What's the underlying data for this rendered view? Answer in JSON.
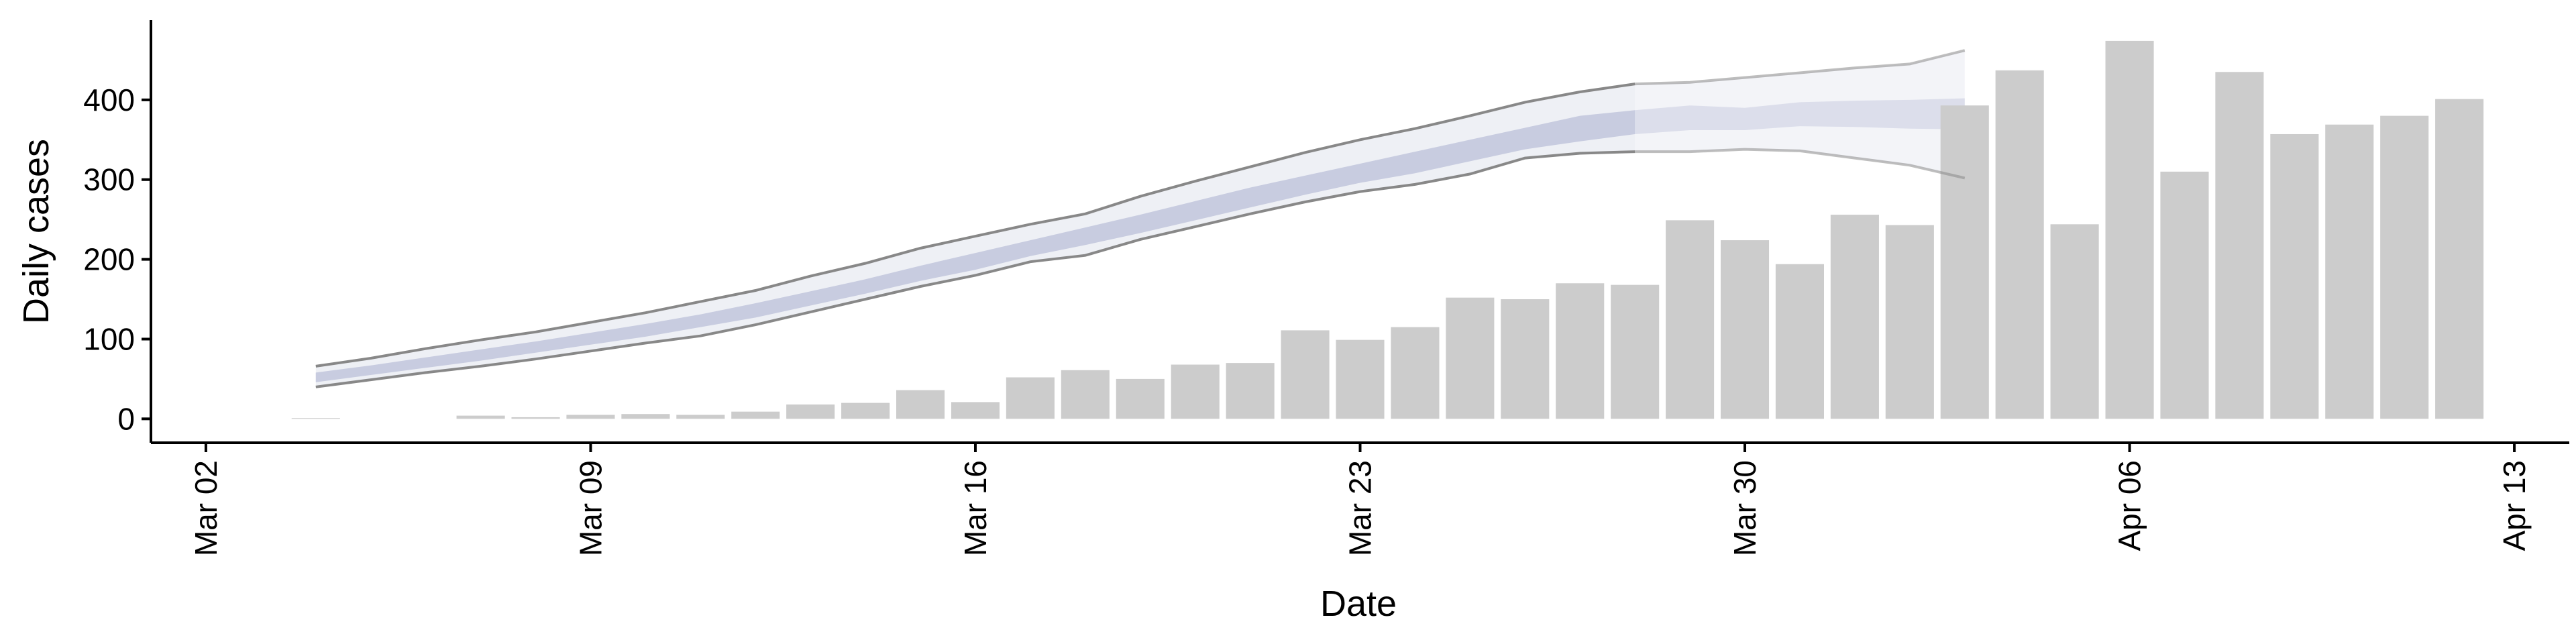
{
  "chart_data": {
    "type": "bar",
    "xlabel": "Date",
    "ylabel": "Daily cases",
    "ylim": [
      -30,
      500
    ],
    "yticks": [
      0,
      100,
      200,
      300,
      400
    ],
    "xlim": [
      "2020-03-01",
      "2020-04-14"
    ],
    "xticks": [
      {
        "date": "2020-03-02",
        "label": "Mar 02"
      },
      {
        "date": "2020-03-09",
        "label": "Mar 09"
      },
      {
        "date": "2020-03-16",
        "label": "Mar 16"
      },
      {
        "date": "2020-03-23",
        "label": "Mar 23"
      },
      {
        "date": "2020-03-30",
        "label": "Mar 30"
      },
      {
        "date": "2020-04-06",
        "label": "Apr 06"
      },
      {
        "date": "2020-04-13",
        "label": "Apr 13"
      }
    ],
    "bars": {
      "color": "#cccccc",
      "dates": [
        "2020-03-04",
        "2020-03-05",
        "2020-03-06",
        "2020-03-07",
        "2020-03-08",
        "2020-03-09",
        "2020-03-10",
        "2020-03-11",
        "2020-03-12",
        "2020-03-13",
        "2020-03-14",
        "2020-03-15",
        "2020-03-16",
        "2020-03-17",
        "2020-03-18",
        "2020-03-19",
        "2020-03-20",
        "2020-03-21",
        "2020-03-22",
        "2020-03-23",
        "2020-03-24",
        "2020-03-25",
        "2020-03-26",
        "2020-03-27",
        "2020-03-28",
        "2020-03-29",
        "2020-03-30",
        "2020-03-31",
        "2020-04-01",
        "2020-04-02",
        "2020-04-03",
        "2020-04-04",
        "2020-04-05",
        "2020-04-06",
        "2020-04-07",
        "2020-04-08",
        "2020-04-09",
        "2020-04-10",
        "2020-04-11",
        "2020-04-12"
      ],
      "values": [
        1,
        0,
        0,
        4,
        2,
        5,
        6,
        5,
        9,
        18,
        20,
        36,
        21,
        52,
        61,
        50,
        68,
        70,
        111,
        99,
        115,
        152,
        150,
        170,
        168,
        249,
        224,
        194,
        256,
        243,
        393,
        437,
        244,
        474,
        310,
        435,
        357,
        369,
        380,
        401
      ]
    },
    "estimate": {
      "dates": [
        "2020-03-04",
        "2020-03-05",
        "2020-03-06",
        "2020-03-07",
        "2020-03-08",
        "2020-03-09",
        "2020-03-10",
        "2020-03-11",
        "2020-03-12",
        "2020-03-13",
        "2020-03-14",
        "2020-03-15",
        "2020-03-16",
        "2020-03-17",
        "2020-03-18",
        "2020-03-19",
        "2020-03-20",
        "2020-03-21",
        "2020-03-22",
        "2020-03-23",
        "2020-03-24",
        "2020-03-25",
        "2020-03-26",
        "2020-03-27",
        "2020-03-28",
        "2020-03-29",
        "2020-03-30",
        "2020-03-31",
        "2020-04-01",
        "2020-04-02",
        "2020-04-03"
      ],
      "upper": [
        66,
        76,
        88,
        99,
        109,
        121,
        133,
        147,
        161,
        179,
        195,
        214,
        229,
        244,
        257,
        279,
        298,
        316,
        334,
        350,
        364,
        380,
        397,
        410,
        420,
        422,
        428,
        434,
        440,
        445,
        462
      ],
      "lower": [
        40,
        49,
        58,
        66,
        75,
        85,
        95,
        104,
        118,
        134,
        150,
        166,
        180,
        197,
        205,
        225,
        241,
        257,
        272,
        285,
        294,
        307,
        327,
        333,
        335,
        335,
        338,
        336,
        327,
        318,
        302
      ],
      "inner_upper": [
        58,
        67,
        77,
        87,
        97,
        108,
        119,
        131,
        145,
        160,
        175,
        192,
        208,
        224,
        240,
        256,
        273,
        290,
        305,
        320,
        335,
        350,
        365,
        380,
        387,
        393,
        390,
        397,
        399,
        400,
        402
      ],
      "inner_lower": [
        46,
        55,
        64,
        73,
        83,
        93,
        103,
        115,
        127,
        142,
        157,
        173,
        187,
        204,
        218,
        233,
        249,
        265,
        281,
        296,
        308,
        323,
        338,
        348,
        357,
        362,
        362,
        367,
        366,
        364,
        363
      ],
      "nowcast_from": "2020-03-28",
      "band_color": "#c8cce0",
      "outer_color": "#eef0f5",
      "line_color": "#888888"
    }
  }
}
